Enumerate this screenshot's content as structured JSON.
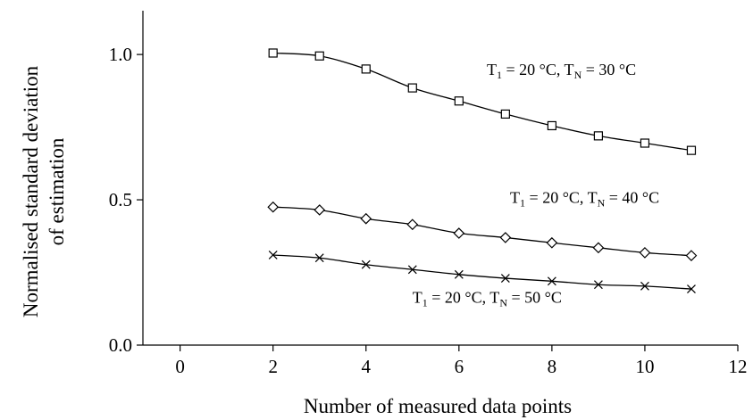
{
  "chart_data": {
    "type": "line",
    "xlabel": "Number of measured data points",
    "ylabel": [
      "Normalised standard deviation",
      "of estimation"
    ],
    "xlim": [
      -0.8,
      12
    ],
    "ylim": [
      0,
      1.12
    ],
    "x_ticks": [
      0,
      2,
      4,
      6,
      8,
      10,
      12
    ],
    "y_ticks": [
      0.0,
      0.5,
      1.0
    ],
    "y_tick_labels": [
      "0.0",
      "0.5",
      "1.0"
    ],
    "grid": false,
    "x": [
      2,
      3,
      4,
      5,
      6,
      7,
      8,
      9,
      10,
      11
    ],
    "series": [
      {
        "marker": "square",
        "values": [
          1.005,
          0.995,
          0.95,
          0.885,
          0.84,
          0.795,
          0.755,
          0.72,
          0.695,
          0.67
        ],
        "annotation": {
          "t1": "T",
          "t1_sub": "1",
          "t1_rest": " = 20 °C, T",
          "tn_sub": "N",
          "tn_rest": " = 30 °C",
          "anchor_x": 6.6,
          "anchor_y": 0.93
        }
      },
      {
        "marker": "diamond",
        "values": [
          0.475,
          0.465,
          0.435,
          0.415,
          0.385,
          0.37,
          0.352,
          0.335,
          0.318,
          0.308
        ],
        "annotation": {
          "t1": "T",
          "t1_sub": "1",
          "t1_rest": " = 20 °C, T",
          "tn_sub": "N",
          "tn_rest": " = 40 °C",
          "anchor_x": 7.1,
          "anchor_y": 0.49
        }
      },
      {
        "marker": "cross",
        "values": [
          0.31,
          0.3,
          0.277,
          0.26,
          0.243,
          0.23,
          0.22,
          0.208,
          0.203,
          0.193
        ],
        "annotation": {
          "t1": "T",
          "t1_sub": "1",
          "t1_rest": " = 20 °C, T",
          "tn_sub": "N",
          "tn_rest": " = 50 °C",
          "anchor_x": 5.0,
          "anchor_y": 0.145
        }
      }
    ]
  }
}
